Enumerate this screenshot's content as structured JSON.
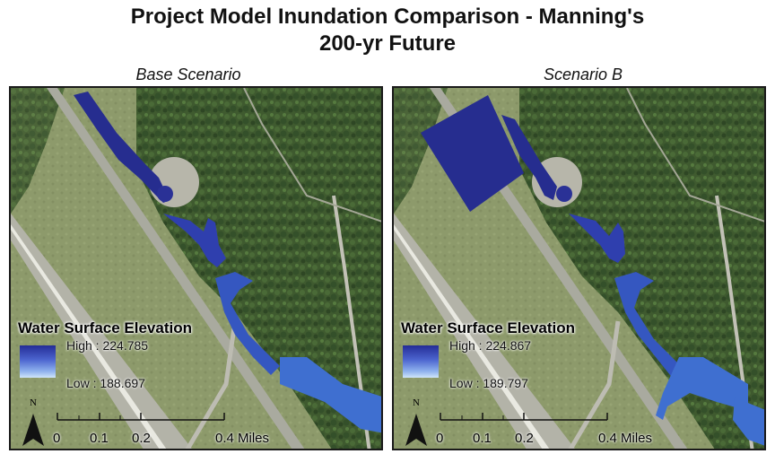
{
  "title_line1": "Project Model Inundation Comparison - Manning's",
  "title_line2": "200-yr Future",
  "colors": {
    "inundation_dark": "#262d8f",
    "inundation_mid": "#2f3fae",
    "inundation_light": "#3f6fd0",
    "legend_high": "#242c96",
    "legend_low": "#cfe6fa"
  },
  "panels": [
    {
      "label": "Base Scenario",
      "legend": {
        "title": "Water Surface Elevation",
        "high": "High : 224.785",
        "low": "Low : 188.697"
      },
      "scale": {
        "ticks": [
          "0",
          "0.1",
          "0.2",
          "0.4 Miles"
        ]
      },
      "north": "N"
    },
    {
      "label": "Scenario B",
      "legend": {
        "title": "Water Surface Elevation",
        "high": "High : 224.867",
        "low": "Low : 189.797"
      },
      "scale": {
        "ticks": [
          "0",
          "0.1",
          "0.2",
          "0.4 Miles"
        ]
      },
      "north": "N"
    }
  ]
}
